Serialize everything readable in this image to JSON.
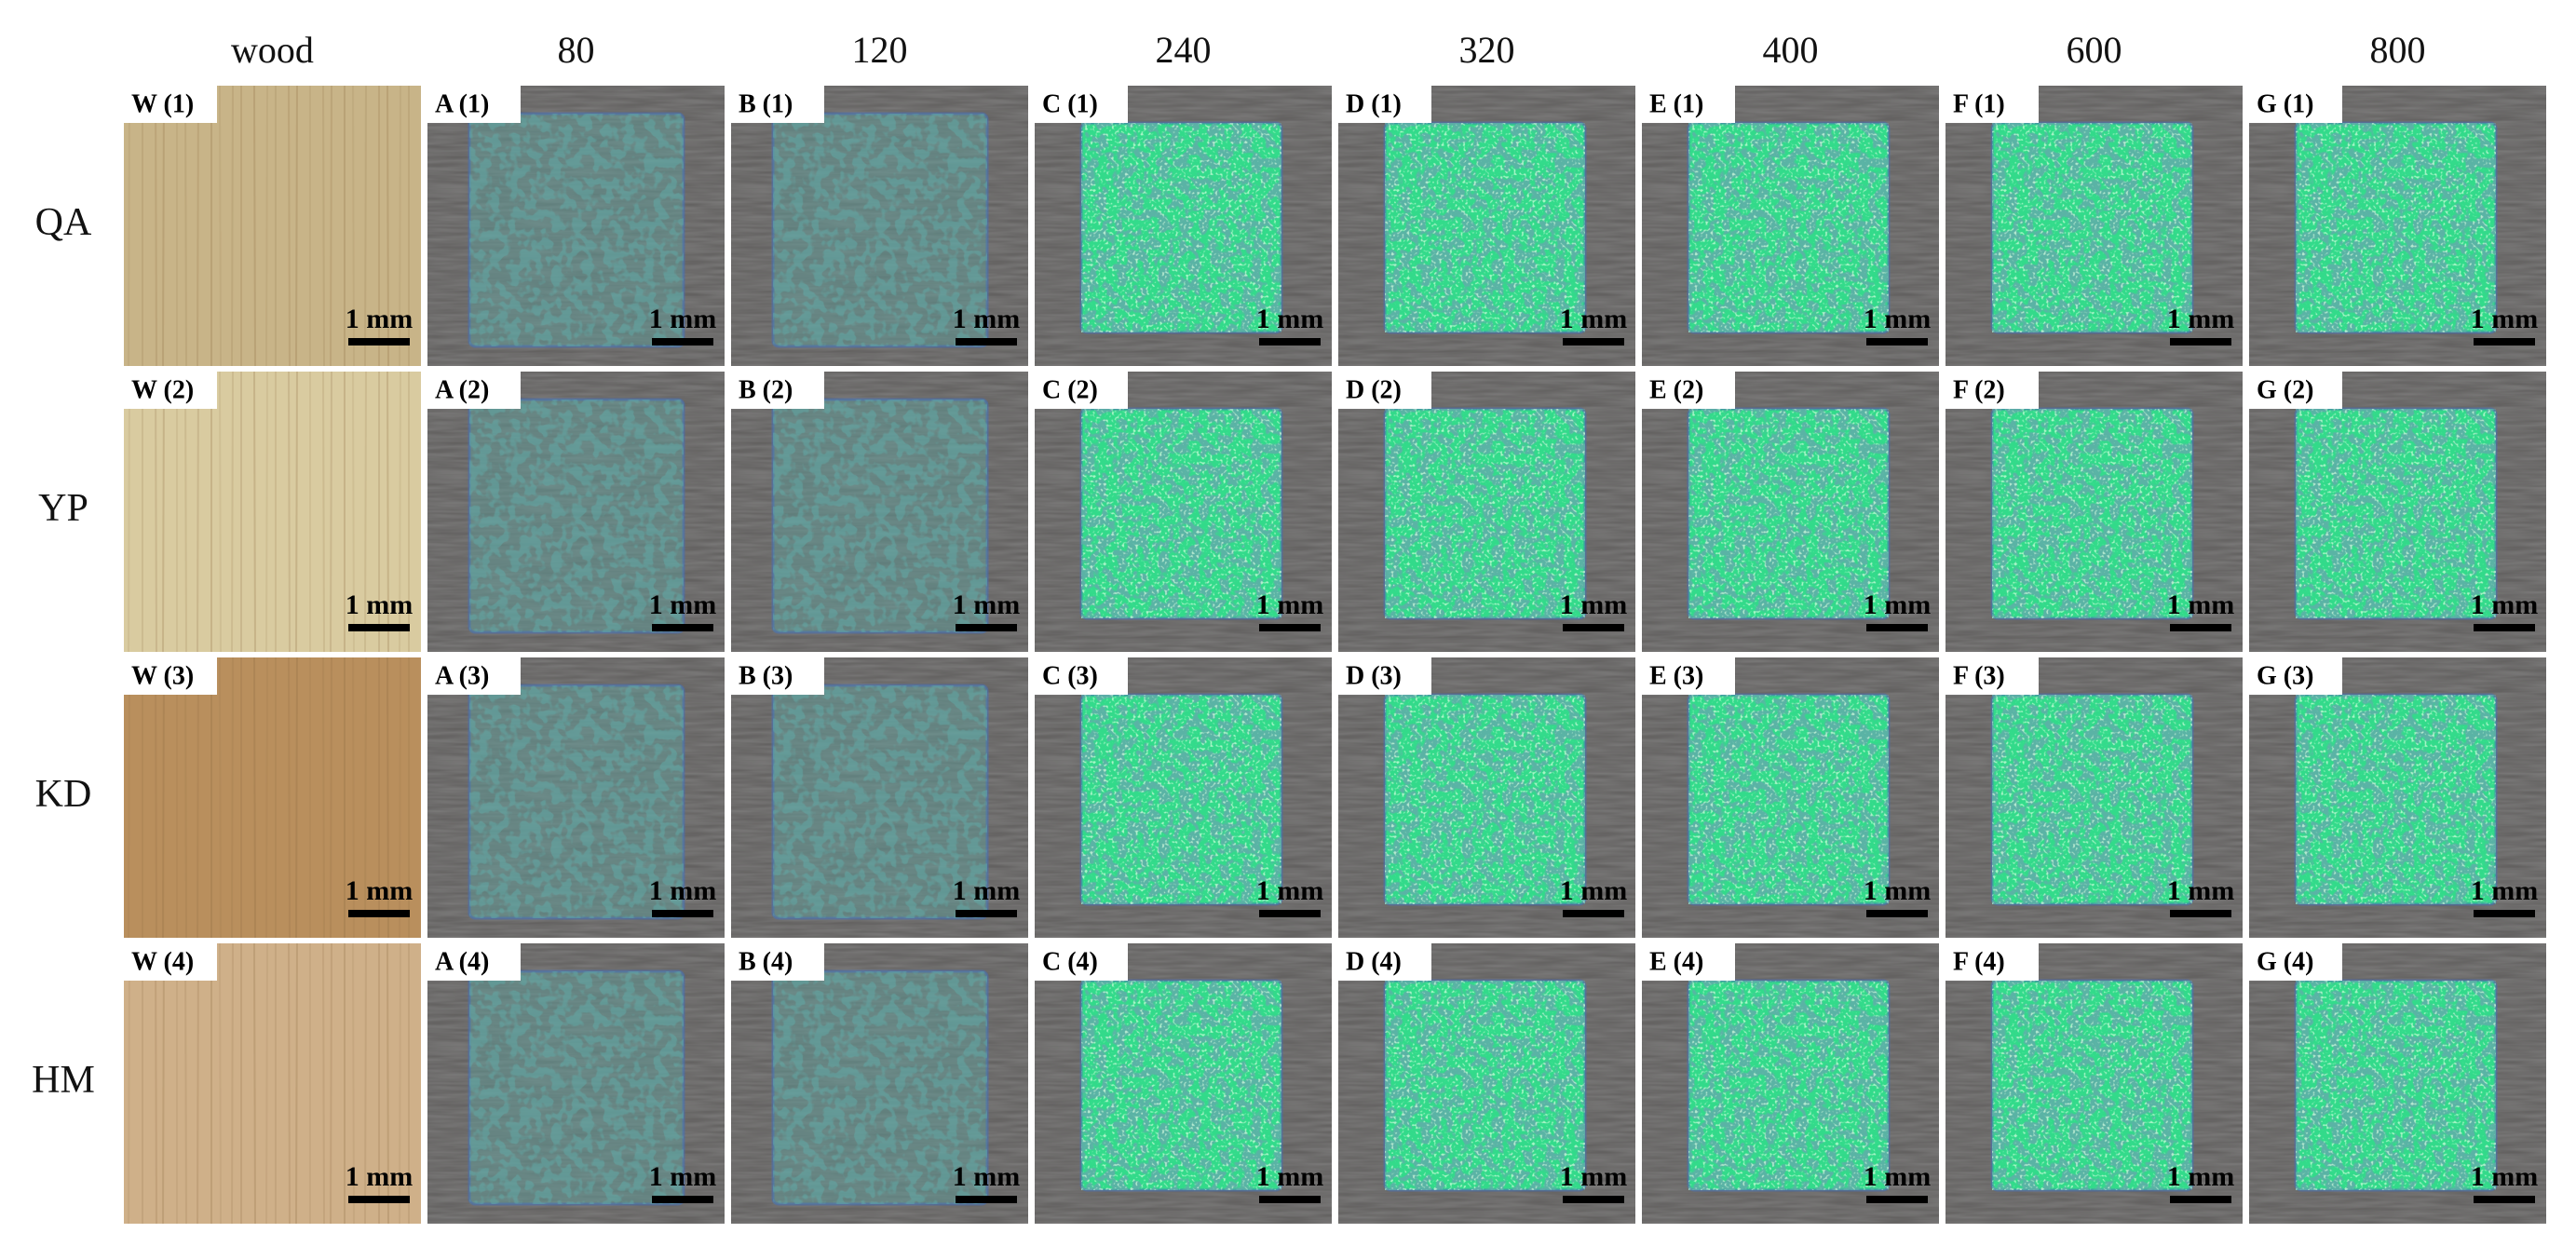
{
  "columns": [
    "wood",
    "80",
    "120",
    "240",
    "320",
    "400",
    "600",
    "800"
  ],
  "rows": [
    {
      "label": "QA",
      "panels": [
        {
          "label": "W (1)",
          "scale_bar": "1 mm"
        },
        {
          "label": "A (1)",
          "scale_bar": "1 mm"
        },
        {
          "label": "B (1)",
          "scale_bar": "1 mm"
        },
        {
          "label": "C (1)",
          "scale_bar": "1 mm"
        },
        {
          "label": "D (1)",
          "scale_bar": "1 mm"
        },
        {
          "label": "E (1)",
          "scale_bar": "1 mm"
        },
        {
          "label": "F (1)",
          "scale_bar": "1 mm"
        },
        {
          "label": "G (1)",
          "scale_bar": "1 mm"
        }
      ]
    },
    {
      "label": "YP",
      "panels": [
        {
          "label": "W (2)",
          "scale_bar": "1 mm"
        },
        {
          "label": "A (2)",
          "scale_bar": "1 mm"
        },
        {
          "label": "B (2)",
          "scale_bar": "1 mm"
        },
        {
          "label": "C (2)",
          "scale_bar": "1 mm"
        },
        {
          "label": "D (2)",
          "scale_bar": "1 mm"
        },
        {
          "label": "E (2)",
          "scale_bar": "1 mm"
        },
        {
          "label": "F (2)",
          "scale_bar": "1 mm"
        },
        {
          "label": "G (2)",
          "scale_bar": "1 mm"
        }
      ]
    },
    {
      "label": "KD",
      "panels": [
        {
          "label": "W (3)",
          "scale_bar": "1 mm"
        },
        {
          "label": "A (3)",
          "scale_bar": "1 mm"
        },
        {
          "label": "B (3)",
          "scale_bar": "1 mm"
        },
        {
          "label": "C (3)",
          "scale_bar": "1 mm"
        },
        {
          "label": "D (3)",
          "scale_bar": "1 mm"
        },
        {
          "label": "E (3)",
          "scale_bar": "1 mm"
        },
        {
          "label": "F (3)",
          "scale_bar": "1 mm"
        },
        {
          "label": "G (3)",
          "scale_bar": "1 mm"
        }
      ]
    },
    {
      "label": "HM",
      "panels": [
        {
          "label": "W (4)",
          "scale_bar": "1 mm"
        },
        {
          "label": "A (4)",
          "scale_bar": "1 mm"
        },
        {
          "label": "B (4)",
          "scale_bar": "1 mm"
        },
        {
          "label": "C (4)",
          "scale_bar": "1 mm"
        },
        {
          "label": "D (4)",
          "scale_bar": "1 mm"
        },
        {
          "label": "E (4)",
          "scale_bar": "1 mm"
        },
        {
          "label": "F (4)",
          "scale_bar": "1 mm"
        },
        {
          "label": "G (4)",
          "scale_bar": "1 mm"
        }
      ]
    }
  ]
}
